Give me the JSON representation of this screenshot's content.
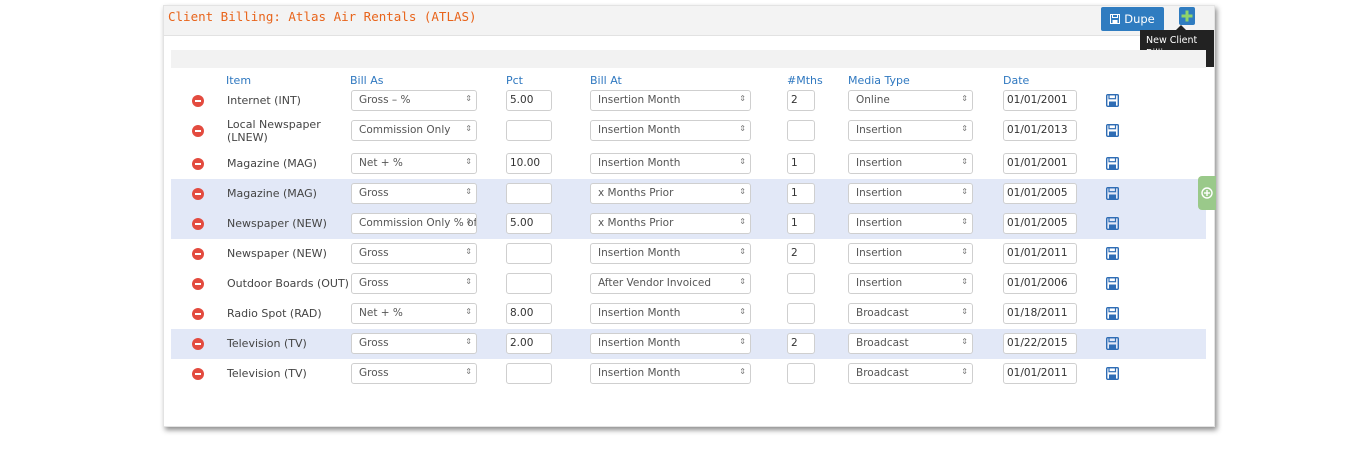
{
  "header": {
    "title": "Client Billing: Atlas Air Rentals (ATLAS)",
    "dupe_label": "Dupe",
    "tooltip": "New Client Billing"
  },
  "columns": {
    "item": "Item",
    "bill_as": "Bill As",
    "pct": "Pct",
    "bill_at": "Bill At",
    "months": "#Mths",
    "media_type": "Media Type",
    "date": "Date"
  },
  "rows": [
    {
      "item": "Internet (INT)",
      "bill_as": "Gross – %",
      "pct": "5.00",
      "bill_at": "Insertion Month",
      "months": "2",
      "media_type": "Online",
      "date": "01/01/2001"
    },
    {
      "item": "Local Newspaper (LNEW)",
      "bill_as": "Commission Only",
      "pct": "",
      "bill_at": "Insertion Month",
      "months": "",
      "media_type": "Insertion",
      "date": "01/01/2013"
    },
    {
      "item": "Magazine (MAG)",
      "bill_as": "Net + %",
      "pct": "10.00",
      "bill_at": "Insertion Month",
      "months": "1",
      "media_type": "Insertion",
      "date": "01/01/2001"
    },
    {
      "item": "Magazine (MAG)",
      "bill_as": "Gross",
      "pct": "",
      "bill_at": "x Months Prior",
      "months": "1",
      "media_type": "Insertion",
      "date": "01/01/2005"
    },
    {
      "item": "Newspaper (NEW)",
      "bill_as": "Commission Only % of",
      "pct": "5.00",
      "bill_at": "x Months Prior",
      "months": "1",
      "media_type": "Insertion",
      "date": "01/01/2005"
    },
    {
      "item": "Newspaper (NEW)",
      "bill_as": "Gross",
      "pct": "",
      "bill_at": "Insertion Month",
      "months": "2",
      "media_type": "Insertion",
      "date": "01/01/2011"
    },
    {
      "item": "Outdoor Boards (OUT)",
      "bill_as": "Gross",
      "pct": "",
      "bill_at": "After Vendor Invoiced",
      "months": "",
      "media_type": "Insertion",
      "date": "01/01/2006"
    },
    {
      "item": "Radio Spot (RAD)",
      "bill_as": "Net + %",
      "pct": "8.00",
      "bill_at": "Insertion Month",
      "months": "",
      "media_type": "Broadcast",
      "date": "01/18/2011"
    },
    {
      "item": "Television (TV)",
      "bill_as": "Gross",
      "pct": "2.00",
      "bill_at": "Insertion Month",
      "months": "2",
      "media_type": "Broadcast",
      "date": "01/22/2015"
    },
    {
      "item": "Television (TV)",
      "bill_as": "Gross",
      "pct": "",
      "bill_at": "Insertion Month",
      "months": "",
      "media_type": "Broadcast",
      "date": "01/01/2011"
    }
  ],
  "icons": {
    "remove": "minus-circle-icon",
    "save": "floppy-disk-icon",
    "dupe": "floppy-disk-icon",
    "add": "plus-icon",
    "side": "plus-circle-icon"
  },
  "colors": {
    "accent": "#2f78c0",
    "title": "#e8641b",
    "remove": "#e34b3f",
    "highlight": "#e2e8f7"
  }
}
